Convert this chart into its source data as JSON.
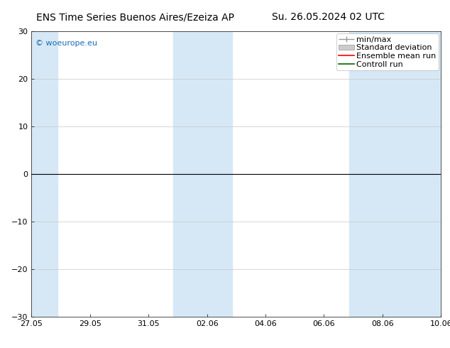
{
  "title_left": "ENS Time Series Buenos Aires/Ezeiza AP",
  "title_right": "Su. 26.05.2024 02 UTC",
  "ylim": [
    -30,
    30
  ],
  "yticks": [
    -30,
    -20,
    -10,
    0,
    10,
    20,
    30
  ],
  "xtick_labels": [
    "27.05",
    "29.05",
    "31.05",
    "02.06",
    "04.06",
    "06.06",
    "08.06",
    "10.06"
  ],
  "xtick_positions_days": [
    0,
    2,
    4,
    6,
    8,
    10,
    12,
    14
  ],
  "total_days": 14,
  "shaded_bands": [
    {
      "x_start_days": -0.1,
      "x_end_days": 0.9
    },
    {
      "x_start_days": 4.85,
      "x_end_days": 6.85
    },
    {
      "x_start_days": 10.85,
      "x_end_days": 14.1
    }
  ],
  "shaded_color": "#d6e8f5",
  "background_color": "#ffffff",
  "zero_line_color": "#000000",
  "grid_color": "#c8c8c8",
  "watermark_text": "© woeurope.eu",
  "watermark_color": "#1a6bb5",
  "title_fontsize": 10,
  "tick_fontsize": 8,
  "legend_fontsize": 8,
  "minmax_color": "#999999",
  "stddev_color": "#cccccc",
  "ensemble_color": "#ff0000",
  "control_color": "#006600"
}
